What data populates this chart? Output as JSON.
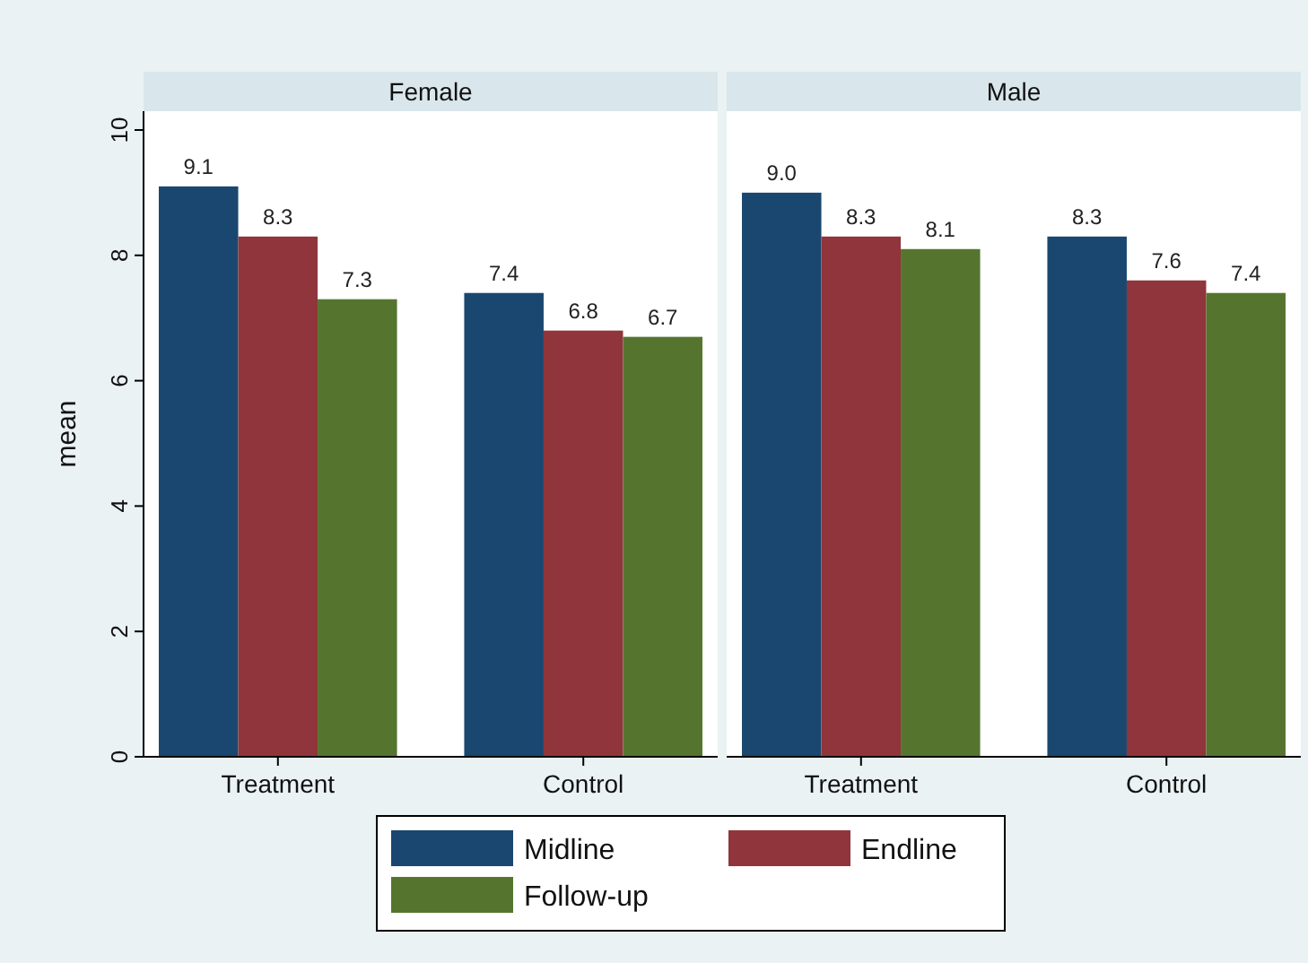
{
  "chart_data": [
    {
      "type": "bar",
      "title": "Female",
      "ylabel": "mean",
      "categories": [
        "Treatment",
        "Control"
      ],
      "series": [
        {
          "name": "Midline",
          "color": "#1a476f",
          "values": [
            9.1,
            7.4
          ],
          "value_labels": [
            "9.1",
            "7.4"
          ]
        },
        {
          "name": "Endline",
          "color": "#90353b",
          "values": [
            8.3,
            6.8
          ],
          "value_labels": [
            "8.3",
            "6.8"
          ]
        },
        {
          "name": "Follow-up",
          "color": "#55752f",
          "values": [
            7.3,
            6.7
          ],
          "value_labels": [
            "7.3",
            "6.7"
          ]
        }
      ],
      "ylim": [
        0,
        10.3
      ],
      "yticks": [
        0,
        2,
        4,
        6,
        8,
        10
      ],
      "legend": "bottom"
    },
    {
      "type": "bar",
      "title": "Male",
      "categories": [
        "Treatment",
        "Control"
      ],
      "series": [
        {
          "name": "Midline",
          "color": "#1a476f",
          "values": [
            9.0,
            8.3
          ],
          "value_labels": [
            "9.0",
            "8.3"
          ]
        },
        {
          "name": "Endline",
          "color": "#90353b",
          "values": [
            8.3,
            7.6
          ],
          "value_labels": [
            "8.3",
            "7.6"
          ]
        },
        {
          "name": "Follow-up",
          "color": "#55752f",
          "values": [
            8.1,
            7.4
          ],
          "value_labels": [
            "8.1",
            "7.4"
          ]
        }
      ],
      "ylim": [
        0,
        10.3
      ],
      "legend": "bottom",
      "tick_labels": "x"
    }
  ]
}
